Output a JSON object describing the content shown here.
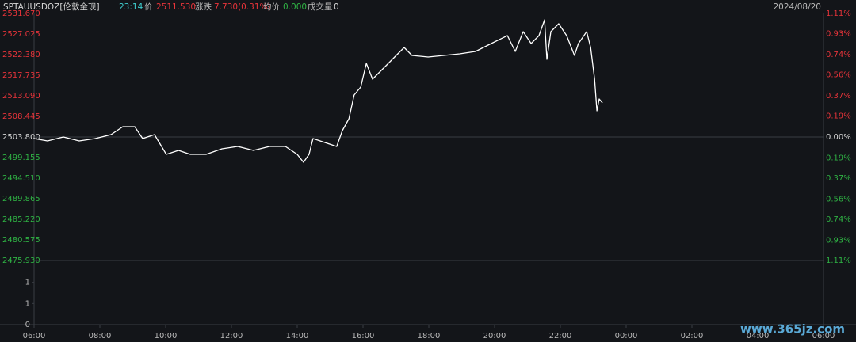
{
  "header": {
    "symbol": "SPTAUUSDOZ[伦敦金现]",
    "time": "23:14",
    "price_label": "价",
    "price": "2511.530",
    "change_label": "涨跌",
    "change": "7.730(0.31%)",
    "avg_label": "均价",
    "avg": "0.000",
    "volume_label": "成交量",
    "volume": "0",
    "date": "2024/08/20"
  },
  "watermark": "www.365jz.com",
  "chart_data": {
    "type": "line",
    "up_color": "#e8343a",
    "down_color": "#2fb344",
    "line_color": "#ffffff",
    "x": [
      6.0,
      6.41,
      6.89,
      7.37,
      7.86,
      8.34,
      8.7,
      9.06,
      9.3,
      9.66,
      10.02,
      10.39,
      10.75,
      11.23,
      11.71,
      12.19,
      12.67,
      13.16,
      13.64,
      14.0,
      14.19,
      14.36,
      14.48,
      14.84,
      15.2,
      15.37,
      15.57,
      15.73,
      15.93,
      16.1,
      16.29,
      16.53,
      16.77,
      17.01,
      17.25,
      17.49,
      17.98,
      18.46,
      18.94,
      19.42,
      19.9,
      20.39,
      20.63,
      20.87,
      21.11,
      21.35,
      21.52,
      21.59,
      21.71,
      21.95,
      22.19,
      22.43,
      22.55,
      22.8,
      22.92,
      23.04,
      23.11,
      23.18,
      23.28
    ],
    "series": [
      {
        "values": [
          2503.44,
          2502.91,
          2503.8,
          2502.91,
          2503.44,
          2504.34,
          2506.12,
          2506.12,
          2503.44,
          2504.34,
          2499.87,
          2500.76,
          2499.87,
          2499.87,
          2501.12,
          2501.66,
          2500.76,
          2501.66,
          2501.66,
          2499.87,
          2498.08,
          2499.87,
          2503.44,
          2502.55,
          2501.66,
          2505.23,
          2507.91,
          2513.27,
          2515.06,
          2520.42,
          2516.84,
          2518.63,
          2520.42,
          2522.2,
          2523.99,
          2522.2,
          2521.85,
          2522.2,
          2522.56,
          2523.1,
          2524.88,
          2526.67,
          2523.1,
          2527.56,
          2524.88,
          2526.67,
          2530.24,
          2521.31,
          2527.56,
          2529.35,
          2526.67,
          2522.2,
          2524.88,
          2527.56,
          2523.99,
          2516.84,
          2509.7,
          2512.38,
          2511.48
        ]
      }
    ],
    "xlim": [
      6,
      30
    ],
    "xticks": [
      {
        "value": 6,
        "label": "06:00"
      },
      {
        "value": 8,
        "label": "08:00"
      },
      {
        "value": 10,
        "label": "10:00"
      },
      {
        "value": 12,
        "label": "12:00"
      },
      {
        "value": 14,
        "label": "14:00"
      },
      {
        "value": 16,
        "label": "16:00"
      },
      {
        "value": 18,
        "label": "18:00"
      },
      {
        "value": 20,
        "label": "20:00"
      },
      {
        "value": 22,
        "label": "22:00"
      },
      {
        "value": 24,
        "label": "00:00"
      },
      {
        "value": 26,
        "label": "02:00"
      },
      {
        "value": 28,
        "label": "04:00"
      },
      {
        "value": 30,
        "label": "06:00"
      }
    ],
    "ylim": [
      2475.93,
      2531.67
    ],
    "yticks": [
      {
        "value": 2531.67,
        "label": "2531.670"
      },
      2527.025,
      {
        "value": 2522.38,
        "label": "2522.380"
      },
      2517.735,
      {
        "value": 2513.09,
        "label": "2513.090"
      },
      2508.445,
      {
        "value": 2503.8,
        "label": "2503.800"
      },
      2499.155,
      {
        "value": 2494.51,
        "label": "2494.510"
      },
      2489.865,
      {
        "value": 2485.22,
        "label": "2485.220"
      },
      2480.575,
      {
        "value": 2475.93,
        "label": "2475.930"
      }
    ],
    "y2lim": [
      -1.11,
      1.11
    ],
    "y2ticks": [
      {
        "value": 1.11,
        "label": "1.11%"
      },
      {
        "value": 0.93,
        "label": "0.93%"
      },
      {
        "value": 0.74,
        "label": "0.74%"
      },
      {
        "value": 0.56,
        "label": "0.56%"
      },
      {
        "value": 0.37,
        "label": "0.37%"
      },
      {
        "value": 0.19,
        "label": "0.19%"
      },
      {
        "value": 0,
        "label": "0.00%"
      },
      {
        "value": -0.19,
        "label": "0.19%"
      },
      {
        "value": -0.37,
        "label": "0.37%"
      },
      {
        "value": -0.56,
        "label": "0.56%"
      },
      {
        "value": -0.74,
        "label": "0.74%"
      },
      {
        "value": -0.93,
        "label": "0.93%"
      },
      {
        "value": -1.11,
        "label": "1.11%"
      }
    ],
    "volume_ylim": [
      0,
      2.1
    ],
    "volume_yticks": [
      {
        "value": 1.4,
        "label": "1"
      },
      {
        "value": 0.7,
        "label": "1"
      },
      0
    ]
  }
}
